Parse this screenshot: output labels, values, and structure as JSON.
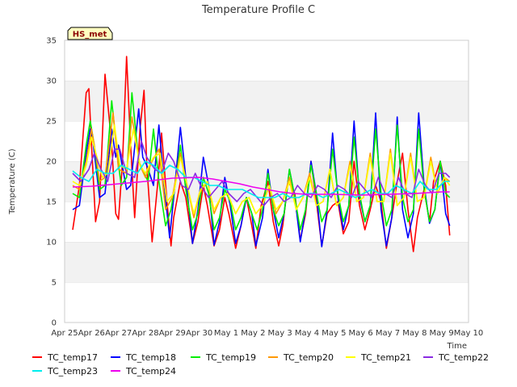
{
  "chart_data": {
    "type": "line",
    "title": "Temperature Profile C",
    "xlabel": "Time",
    "ylabel": "Temperature (C)",
    "annotation": "HS_met",
    "grid": true,
    "ylim": [
      0,
      35
    ],
    "y_ticks": [
      0,
      5,
      10,
      15,
      20,
      25,
      30,
      35
    ],
    "xlim": [
      0,
      15
    ],
    "x_ticks": [
      {
        "x": 0,
        "label": "Apr 25"
      },
      {
        "x": 1,
        "label": "Apr 26"
      },
      {
        "x": 2,
        "label": "Apr 27"
      },
      {
        "x": 3,
        "label": "Apr 28"
      },
      {
        "x": 4,
        "label": "Apr 29"
      },
      {
        "x": 5,
        "label": "Apr 30"
      },
      {
        "x": 6,
        "label": "May 1"
      },
      {
        "x": 7,
        "label": "May 2"
      },
      {
        "x": 8,
        "label": "May 3"
      },
      {
        "x": 9,
        "label": "May 4"
      },
      {
        "x": 10,
        "label": "May 5"
      },
      {
        "x": 11,
        "label": "May 6"
      },
      {
        "x": 12,
        "label": "May 7"
      },
      {
        "x": 13,
        "label": "May 8"
      },
      {
        "x": 14,
        "label": "May 9"
      },
      {
        "x": 15,
        "label": "May 10"
      }
    ],
    "x_units": "days since Apr 25",
    "legend_position": "bottom",
    "series": [
      {
        "name": "TC_temp17",
        "color": "#ff0000",
        "x": [
          0.3,
          0.55,
          0.8,
          0.9,
          1.0,
          1.15,
          1.3,
          1.5,
          1.75,
          1.9,
          2.0,
          2.15,
          2.3,
          2.45,
          2.6,
          2.8,
          2.95,
          3.05,
          3.25,
          3.45,
          3.6,
          3.8,
          3.95,
          4.05,
          4.3,
          4.5,
          4.75,
          4.95,
          5.15,
          5.3,
          5.55,
          5.75,
          5.95,
          6.1,
          6.35,
          6.55,
          6.75,
          6.95,
          7.1,
          7.3,
          7.55,
          7.75,
          7.95,
          8.1,
          8.3,
          8.55,
          8.75,
          8.95,
          9.15,
          9.35,
          9.55,
          9.75,
          9.95,
          10.15,
          10.35,
          10.55,
          10.75,
          10.95,
          11.15,
          11.35,
          11.55,
          11.75,
          11.95,
          12.15,
          12.35,
          12.55,
          12.75,
          12.95,
          13.1,
          13.35,
          13.55,
          13.7,
          13.95,
          14.15,
          14.3
        ],
        "y": [
          11.5,
          17.0,
          28.5,
          29.0,
          22.0,
          12.5,
          15.0,
          30.8,
          22.0,
          13.5,
          12.8,
          20.0,
          33.0,
          22.0,
          13.0,
          24.0,
          28.8,
          19.5,
          10.0,
          17.0,
          23.5,
          15.0,
          9.5,
          13.0,
          17.5,
          15.5,
          9.8,
          12.5,
          17.0,
          14.5,
          9.5,
          11.5,
          15.5,
          13.5,
          9.2,
          12.0,
          15.5,
          12.0,
          9.2,
          14.5,
          17.5,
          12.5,
          9.5,
          12.0,
          17.5,
          16.0,
          10.2,
          13.5,
          20.0,
          15.0,
          9.5,
          13.5,
          14.5,
          15.0,
          11.0,
          12.5,
          20.0,
          14.5,
          11.5,
          14.0,
          17.0,
          15.0,
          9.2,
          13.0,
          17.5,
          21.0,
          14.0,
          8.8,
          13.0,
          16.5,
          12.5,
          17.5,
          20.0,
          17.0,
          10.8
        ]
      },
      {
        "name": "TC_temp18",
        "color": "#0000ff",
        "x": [
          0.3,
          0.55,
          0.8,
          0.95,
          1.05,
          1.3,
          1.5,
          1.75,
          1.9,
          2.0,
          2.3,
          2.45,
          2.75,
          2.9,
          3.05,
          3.3,
          3.5,
          3.7,
          3.9,
          4.05,
          4.3,
          4.5,
          4.75,
          4.95,
          5.15,
          5.35,
          5.55,
          5.75,
          5.95,
          6.15,
          6.35,
          6.55,
          6.75,
          6.95,
          7.1,
          7.35,
          7.55,
          7.75,
          7.95,
          8.15,
          8.35,
          8.55,
          8.75,
          8.95,
          9.15,
          9.35,
          9.55,
          9.75,
          9.95,
          10.15,
          10.35,
          10.55,
          10.75,
          10.95,
          11.15,
          11.35,
          11.55,
          11.75,
          11.95,
          12.15,
          12.35,
          12.55,
          12.75,
          12.95,
          13.15,
          13.35,
          13.55,
          13.75,
          13.95,
          14.15,
          14.3
        ],
        "y": [
          14.0,
          14.5,
          21.0,
          24.0,
          22.5,
          15.5,
          16.0,
          24.0,
          20.5,
          22.0,
          16.5,
          17.0,
          26.5,
          20.5,
          19.5,
          17.0,
          24.5,
          17.0,
          10.5,
          15.5,
          24.2,
          18.0,
          9.8,
          14.0,
          20.5,
          17.0,
          9.6,
          12.5,
          18.0,
          14.5,
          9.8,
          12.0,
          15.5,
          13.5,
          9.5,
          13.0,
          19.0,
          14.0,
          10.5,
          13.5,
          19.0,
          15.5,
          10.0,
          14.0,
          20.0,
          16.0,
          9.4,
          14.0,
          23.5,
          15.5,
          11.5,
          14.5,
          25.0,
          15.5,
          12.5,
          14.5,
          26.0,
          14.0,
          9.5,
          13.0,
          25.5,
          14.0,
          10.5,
          13.5,
          26.0,
          17.0,
          12.3,
          14.0,
          20.0,
          13.5,
          12.0
        ]
      },
      {
        "name": "TC_temp19",
        "color": "#00ee00",
        "x": [
          0.3,
          0.55,
          0.8,
          0.95,
          1.1,
          1.3,
          1.5,
          1.75,
          1.95,
          2.1,
          2.3,
          2.5,
          2.75,
          2.95,
          3.1,
          3.3,
          3.5,
          3.75,
          3.95,
          4.1,
          4.3,
          4.5,
          4.75,
          4.95,
          5.15,
          5.35,
          5.55,
          5.75,
          5.95,
          6.15,
          6.35,
          6.55,
          6.75,
          6.95,
          7.15,
          7.35,
          7.55,
          7.75,
          7.95,
          8.15,
          8.35,
          8.55,
          8.75,
          8.95,
          9.15,
          9.35,
          9.55,
          9.75,
          9.95,
          10.15,
          10.35,
          10.55,
          10.75,
          10.95,
          11.15,
          11.35,
          11.55,
          11.75,
          11.95,
          12.15,
          12.35,
          12.55,
          12.75,
          12.95,
          13.15,
          13.35,
          13.55,
          13.75,
          13.95,
          14.15,
          14.3
        ],
        "y": [
          16.0,
          15.5,
          22.0,
          25.0,
          22.0,
          16.5,
          17.0,
          27.5,
          21.0,
          17.0,
          18.0,
          28.5,
          20.0,
          18.5,
          17.5,
          24.0,
          17.5,
          12.0,
          14.0,
          17.0,
          22.0,
          16.5,
          11.5,
          13.5,
          18.0,
          16.0,
          11.5,
          13.0,
          16.5,
          15.0,
          11.5,
          13.0,
          15.5,
          13.5,
          11.5,
          14.0,
          18.5,
          14.0,
          12.0,
          13.5,
          19.0,
          15.5,
          11.5,
          14.0,
          19.5,
          16.0,
          12.5,
          14.0,
          21.5,
          16.0,
          12.5,
          14.5,
          23.0,
          16.0,
          12.5,
          14.5,
          24.0,
          16.0,
          12.0,
          14.0,
          24.5,
          15.5,
          12.5,
          14.0,
          24.0,
          16.5,
          12.5,
          14.0,
          20.0,
          16.0,
          15.5
        ]
      },
      {
        "name": "TC_temp20",
        "color": "#ff9900",
        "x": [
          0.3,
          0.55,
          0.8,
          1.0,
          1.15,
          1.3,
          1.5,
          1.8,
          2.0,
          2.3,
          2.5,
          2.8,
          3.0,
          3.25,
          3.5,
          3.75,
          4.0,
          4.3,
          4.55,
          4.8,
          5.0,
          5.3,
          5.55,
          5.8,
          6.05,
          6.35,
          6.6,
          6.85,
          7.1,
          7.35,
          7.6,
          7.85,
          8.1,
          8.35,
          8.6,
          8.85,
          9.1,
          9.35,
          9.6,
          9.85,
          10.1,
          10.35,
          10.6,
          10.85,
          11.1,
          11.35,
          11.6,
          11.85,
          12.1,
          12.35,
          12.6,
          12.85,
          13.1,
          13.35,
          13.6,
          13.85,
          14.1,
          14.3
        ],
        "y": [
          17.0,
          16.5,
          20.0,
          24.0,
          21.0,
          17.5,
          18.0,
          26.0,
          19.0,
          18.5,
          25.5,
          19.5,
          18.0,
          20.0,
          21.5,
          14.0,
          15.5,
          21.0,
          17.0,
          13.0,
          16.0,
          17.5,
          13.5,
          15.5,
          16.0,
          13.5,
          15.0,
          15.5,
          13.5,
          14.5,
          17.0,
          13.5,
          15.0,
          18.0,
          14.0,
          15.5,
          18.5,
          14.5,
          15.0,
          19.0,
          14.5,
          15.5,
          20.0,
          15.0,
          15.5,
          21.0,
          15.0,
          15.0,
          21.5,
          14.5,
          15.5,
          21.0,
          15.0,
          15.5,
          20.5,
          16.0,
          18.0,
          17.5
        ]
      },
      {
        "name": "TC_temp21",
        "color": "#ffff00",
        "x": [
          0.3,
          0.55,
          0.8,
          1.0,
          1.2,
          1.4,
          1.6,
          1.85,
          2.05,
          2.3,
          2.55,
          2.8,
          3.0,
          3.3,
          3.55,
          3.8,
          4.05,
          4.3,
          4.55,
          4.8,
          5.05,
          5.3,
          5.55,
          5.8,
          6.05,
          6.35,
          6.6,
          6.85,
          7.1,
          7.35,
          7.6,
          7.85,
          8.1,
          8.35,
          8.6,
          8.85,
          9.1,
          9.35,
          9.6,
          9.85,
          10.1,
          10.35,
          10.6,
          10.85,
          11.1,
          11.35,
          11.6,
          11.85,
          12.1,
          12.35,
          12.6,
          12.85,
          13.1,
          13.35,
          13.6,
          13.85,
          14.1,
          14.3
        ],
        "y": [
          17.5,
          17.0,
          19.5,
          23.0,
          20.5,
          18.0,
          18.5,
          24.5,
          19.5,
          19.0,
          24.0,
          19.5,
          18.5,
          20.5,
          21.0,
          15.0,
          16.0,
          20.5,
          17.0,
          13.5,
          16.5,
          17.5,
          14.0,
          15.5,
          16.0,
          13.5,
          15.0,
          15.5,
          13.5,
          14.5,
          17.0,
          14.0,
          15.0,
          17.5,
          14.0,
          15.5,
          18.0,
          14.5,
          15.0,
          19.0,
          14.5,
          15.5,
          19.5,
          15.0,
          15.5,
          20.5,
          15.0,
          15.0,
          21.0,
          14.5,
          15.5,
          20.5,
          15.0,
          15.5,
          20.0,
          16.0,
          18.0,
          17.0
        ]
      },
      {
        "name": "TC_temp22",
        "color": "#8a2be2",
        "x": [
          0.3,
          0.6,
          0.9,
          1.1,
          1.35,
          1.6,
          1.85,
          2.05,
          2.3,
          2.6,
          2.85,
          3.05,
          3.35,
          3.6,
          3.85,
          4.05,
          4.35,
          4.6,
          4.85,
          5.05,
          5.35,
          5.6,
          5.85,
          6.1,
          6.4,
          6.65,
          6.9,
          7.15,
          7.4,
          7.65,
          7.9,
          8.15,
          8.4,
          8.65,
          8.9,
          9.15,
          9.4,
          9.65,
          9.9,
          10.15,
          10.4,
          10.65,
          10.9,
          11.15,
          11.4,
          11.65,
          11.9,
          12.15,
          12.4,
          12.65,
          12.9,
          13.15,
          13.4,
          13.65,
          13.9,
          14.15,
          14.3
        ],
        "y": [
          18.5,
          17.5,
          19.0,
          21.0,
          19.0,
          17.5,
          21.5,
          21.5,
          18.5,
          18.0,
          22.5,
          20.5,
          19.0,
          18.5,
          21.0,
          20.0,
          17.0,
          16.5,
          18.5,
          17.0,
          15.5,
          16.5,
          17.5,
          16.0,
          15.0,
          16.0,
          16.5,
          15.5,
          14.5,
          15.5,
          16.0,
          15.0,
          15.5,
          17.0,
          16.0,
          15.5,
          17.0,
          16.5,
          15.5,
          17.0,
          16.5,
          15.5,
          17.5,
          16.5,
          15.5,
          18.0,
          16.0,
          15.5,
          18.0,
          16.0,
          15.5,
          19.0,
          17.0,
          16.0,
          18.5,
          18.5,
          18.0
        ]
      },
      {
        "name": "TC_temp23",
        "color": "#00eeee",
        "x": [
          0.3,
          0.6,
          0.9,
          1.2,
          1.5,
          1.8,
          2.1,
          2.4,
          2.7,
          3.0,
          3.3,
          3.6,
          3.9,
          4.2,
          4.5,
          4.8,
          5.1,
          5.4,
          5.7,
          6.0,
          6.3,
          6.6,
          6.9,
          7.2,
          7.5,
          7.8,
          8.1,
          8.4,
          8.7,
          9.0,
          9.3,
          9.6,
          9.9,
          10.2,
          10.5,
          10.8,
          11.1,
          11.4,
          11.7,
          12.0,
          12.3,
          12.6,
          12.9,
          13.2,
          13.5,
          13.8,
          14.1,
          14.3
        ],
        "y": [
          18.8,
          18.0,
          17.5,
          19.0,
          18.5,
          18.5,
          19.5,
          19.0,
          18.5,
          20.0,
          19.5,
          18.5,
          19.5,
          19.0,
          18.0,
          18.0,
          17.5,
          17.0,
          17.0,
          16.5,
          16.5,
          16.5,
          16.0,
          15.5,
          15.5,
          15.5,
          16.0,
          15.5,
          15.5,
          16.0,
          16.0,
          15.5,
          16.0,
          16.5,
          16.0,
          15.5,
          16.0,
          16.5,
          16.0,
          16.0,
          17.0,
          16.5,
          16.0,
          17.5,
          16.5,
          16.5,
          17.5,
          17.5
        ]
      },
      {
        "name": "TC_temp24",
        "color": "#ee00ee",
        "x": [
          0.3,
          1.0,
          2.0,
          3.0,
          4.0,
          5.0,
          5.5,
          6.0,
          6.5,
          7.0,
          7.5,
          8.0,
          8.5,
          9.0,
          10.0,
          11.0,
          12.0,
          13.0,
          13.5,
          14.0,
          14.3
        ],
        "y": [
          16.8,
          16.9,
          17.2,
          17.5,
          17.9,
          18.0,
          17.8,
          17.5,
          17.2,
          16.8,
          16.5,
          16.2,
          16.0,
          15.9,
          15.9,
          15.8,
          15.9,
          16.0,
          16.1,
          16.2,
          16.2
        ]
      }
    ]
  }
}
